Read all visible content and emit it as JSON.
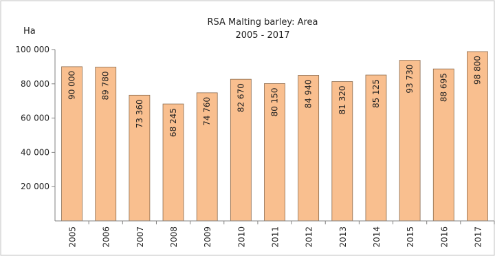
{
  "chart_data": {
    "type": "bar",
    "title": "RSA  Malting barley: Area",
    "subtitle": "2005 - 2017",
    "ylabel": "Ha",
    "xlabel": "",
    "categories": [
      "2005",
      "2006",
      "2007",
      "2008",
      "2009",
      "2010",
      "2011",
      "2012",
      "2013",
      "2014",
      "2015",
      "2016",
      "2017"
    ],
    "values": [
      90000,
      89780,
      73360,
      68245,
      74760,
      82670,
      80150,
      84940,
      81320,
      85125,
      93730,
      88695,
      98800
    ],
    "data_labels": [
      "90 000",
      "89 780",
      "73 360",
      "68 245",
      "74 760",
      "82 670",
      "80 150",
      "84 940",
      "81 320",
      "85 125",
      "93 730",
      "88 695",
      "98 800"
    ],
    "ylim": [
      0,
      100000
    ],
    "yticks": [
      20000,
      40000,
      60000,
      80000,
      100000
    ],
    "ytick_labels": [
      "20 000",
      "40 000",
      "60 000",
      "80 000",
      "100 000"
    ],
    "grid": false,
    "legend": "none",
    "colors": {
      "bar_fill": "#f9bf8f",
      "bar_stroke": "#8a6a4c",
      "axis": "#808080",
      "frame": "#c0c0c0"
    }
  }
}
